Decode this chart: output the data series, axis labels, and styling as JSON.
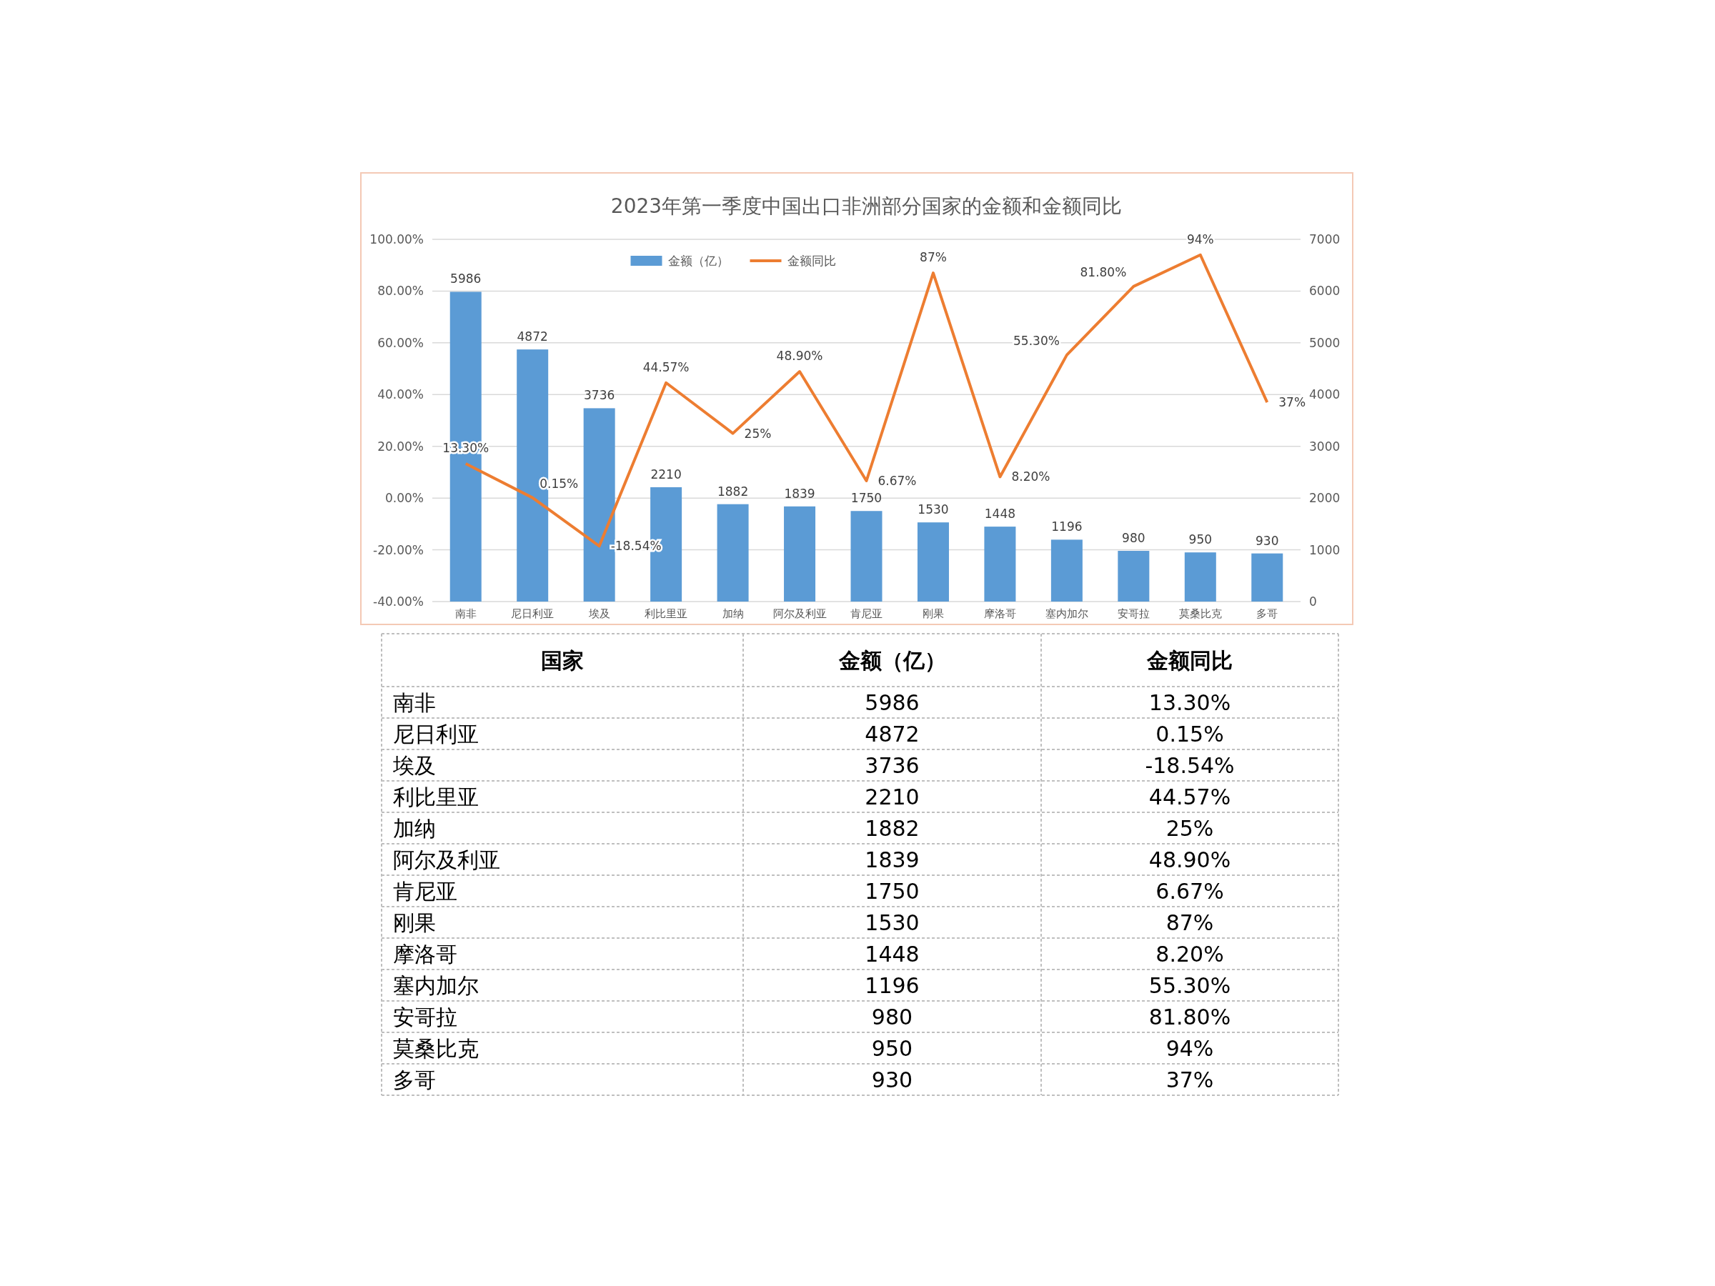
{
  "chart_data": {
    "type": "bar",
    "title": "2023年第一季度中国出口非洲部分国家的金额和金额同比",
    "categories": [
      "南非",
      "尼日利亚",
      "埃及",
      "利比里亚",
      "加纳",
      "阿尔及利亚",
      "肯尼亚",
      "刚果",
      "摩洛哥",
      "塞内加尔",
      "安哥拉",
      "莫桑比克",
      "多哥"
    ],
    "series": [
      {
        "name": "金额（亿）",
        "axis": "y2",
        "color": "#5b9bd5",
        "values": [
          5986,
          4872,
          3736,
          2210,
          1882,
          1839,
          1750,
          1530,
          1448,
          1196,
          980,
          950,
          930
        ],
        "value_labels": [
          "5986",
          "4872",
          "3736",
          "2210",
          "1882",
          "1839",
          "1750",
          "1530",
          "1448",
          "1196",
          "980",
          "950",
          "930"
        ]
      },
      {
        "name": "金额同比",
        "type": "line",
        "axis": "y",
        "color": "#ed7d31",
        "values": [
          13.3,
          0.15,
          -18.54,
          44.57,
          25,
          48.9,
          6.67,
          87,
          8.2,
          55.3,
          81.8,
          94,
          37
        ],
        "value_labels": [
          "13.30%",
          "0.15%",
          "-18.54%",
          "44.57%",
          "25%",
          "48.90%",
          "6.67%",
          "87%",
          "8.20%",
          "55.30%",
          "81.80%",
          "94%",
          "37%"
        ]
      }
    ],
    "ylim": [
      -40,
      100
    ],
    "yticks": [
      {
        "value": -40,
        "label": "-40.00%"
      },
      {
        "value": -20,
        "label": "-20.00%"
      },
      {
        "value": 0,
        "label": "0.00%"
      },
      {
        "value": 20,
        "label": "20.00%"
      },
      {
        "value": 40,
        "label": "40.00%"
      },
      {
        "value": 60,
        "label": "60.00%"
      },
      {
        "value": 80,
        "label": "80.00%"
      },
      {
        "value": 100,
        "label": "100.00%"
      }
    ],
    "y2lim": [
      0,
      7000
    ],
    "y2ticks": [
      0,
      1000,
      2000,
      3000,
      4000,
      5000,
      6000,
      7000
    ],
    "grid": "y",
    "legend": "top",
    "marker": "none",
    "annotations": [
      "国家"
    ]
  }
}
